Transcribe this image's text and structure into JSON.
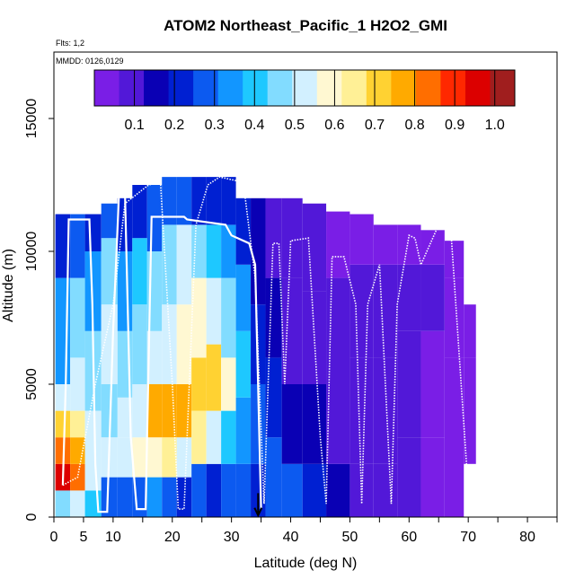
{
  "chart_data": {
    "type": "heatmap",
    "title": "ATOM2 Northeast_Pacific_1 H2O2_GMI",
    "annotations": [
      "Flts: 1,2",
      "MMDD: 0126,0129"
    ],
    "xlabel": "Latitude (deg N)",
    "ylabel": "Altitude (m)",
    "xlim": [
      0,
      85
    ],
    "ylim": [
      0,
      17500
    ],
    "x_ticks": [
      0,
      5,
      10,
      20,
      30,
      40,
      50,
      60,
      70,
      80
    ],
    "y_ticks": [
      0,
      5000,
      10000,
      15000
    ],
    "grid": false,
    "colorbar": {
      "position": "top-inside",
      "range": [
        0,
        1.05
      ],
      "tick_values": [
        0.1,
        0.2,
        0.3,
        0.4,
        0.5,
        0.6,
        0.7,
        0.8,
        0.9,
        1.0
      ],
      "tick_labels": [
        "0.1",
        "0.2",
        "0.3",
        "0.4",
        "0.5",
        "0.6",
        "0.7",
        "0.8",
        "0.9",
        "1.0"
      ],
      "colors": [
        "#7a1ee6",
        "#5218d8",
        "#0a00b4",
        "#0020d2",
        "#0c5af0",
        "#1296ff",
        "#1ec8ff",
        "#82dcff",
        "#d2f0ff",
        "#fff8d2",
        "#fff096",
        "#ffd232",
        "#ffaa00",
        "#ff6e00",
        "#ff2800",
        "#dc0000",
        "#a01e1e"
      ]
    },
    "h2o2_columns_ppbv": [
      {
        "lat": 1.5,
        "profile": [
          [
            0,
            1000,
            0.45
          ],
          [
            1000,
            2000,
            0.95
          ],
          [
            2000,
            3000,
            0.85
          ],
          [
            3000,
            4000,
            0.7
          ],
          [
            4000,
            5000,
            0.5
          ],
          [
            5000,
            9000,
            0.35
          ],
          [
            9000,
            11400,
            0.2
          ]
        ]
      },
      {
        "lat": 4,
        "profile": [
          [
            0,
            1000,
            0.5
          ],
          [
            1000,
            2000,
            0.85
          ],
          [
            2000,
            3000,
            0.8
          ],
          [
            3000,
            4000,
            0.65
          ],
          [
            4000,
            6000,
            0.5
          ],
          [
            6000,
            9000,
            0.45
          ],
          [
            9000,
            11400,
            0.25
          ]
        ]
      },
      {
        "lat": 6.5,
        "profile": [
          [
            0,
            1000,
            0.4
          ],
          [
            1000,
            2500,
            0.55
          ],
          [
            2500,
            4000,
            0.5
          ],
          [
            4000,
            7000,
            0.45
          ],
          [
            7000,
            10000,
            0.35
          ],
          [
            10000,
            11400,
            0.2
          ]
        ]
      },
      {
        "lat": 9.5,
        "profile": [
          [
            0,
            1500,
            0.3
          ],
          [
            1500,
            3000,
            0.55
          ],
          [
            3000,
            5000,
            0.45
          ],
          [
            5000,
            8000,
            0.5
          ],
          [
            8000,
            10500,
            0.45
          ],
          [
            10500,
            11800,
            0.25
          ]
        ]
      },
      {
        "lat": 12,
        "profile": [
          [
            0,
            1500,
            0.25
          ],
          [
            1500,
            3000,
            0.5
          ],
          [
            3000,
            4500,
            0.55
          ],
          [
            4500,
            7000,
            0.45
          ],
          [
            7000,
            10000,
            0.35
          ],
          [
            10000,
            12000,
            0.2
          ]
        ]
      },
      {
        "lat": 14.5,
        "profile": [
          [
            0,
            1500,
            0.3
          ],
          [
            1500,
            3000,
            0.6
          ],
          [
            3000,
            5000,
            0.55
          ],
          [
            5000,
            8000,
            0.45
          ],
          [
            8000,
            10500,
            0.4
          ],
          [
            10500,
            12500,
            0.2
          ]
        ]
      },
      {
        "lat": 17,
        "profile": [
          [
            0,
            1500,
            0.35
          ],
          [
            1500,
            3000,
            0.6
          ],
          [
            3000,
            5000,
            0.75
          ],
          [
            5000,
            7000,
            0.55
          ],
          [
            7000,
            10000,
            0.45
          ],
          [
            10000,
            12500,
            0.3
          ]
        ]
      },
      {
        "lat": 19.5,
        "profile": [
          [
            0,
            1500,
            0.25
          ],
          [
            1500,
            3000,
            0.65
          ],
          [
            3000,
            5000,
            0.78
          ],
          [
            5000,
            8000,
            0.55
          ],
          [
            8000,
            11000,
            0.45
          ],
          [
            11000,
            12800,
            0.25
          ]
        ]
      },
      {
        "lat": 22,
        "profile": [
          [
            0,
            1500,
            0.2
          ],
          [
            1500,
            3000,
            0.55
          ],
          [
            3000,
            5000,
            0.75
          ],
          [
            5000,
            8000,
            0.6
          ],
          [
            8000,
            11000,
            0.5
          ],
          [
            11000,
            12800,
            0.25
          ]
        ]
      },
      {
        "lat": 24.5,
        "profile": [
          [
            0,
            2000,
            0.25
          ],
          [
            2000,
            4000,
            0.65
          ],
          [
            4000,
            6000,
            0.7
          ],
          [
            6000,
            9000,
            0.6
          ],
          [
            9000,
            11000,
            0.45
          ],
          [
            11000,
            12800,
            0.2
          ]
        ]
      },
      {
        "lat": 27,
        "profile": [
          [
            0,
            2000,
            0.2
          ],
          [
            2000,
            4000,
            0.5
          ],
          [
            4000,
            6500,
            0.7
          ],
          [
            6500,
            9000,
            0.55
          ],
          [
            9000,
            11000,
            0.4
          ],
          [
            11000,
            12800,
            0.2
          ]
        ]
      },
      {
        "lat": 29.5,
        "profile": [
          [
            0,
            2000,
            0.3
          ],
          [
            2000,
            4000,
            0.4
          ],
          [
            4000,
            6000,
            0.6
          ],
          [
            6000,
            9000,
            0.45
          ],
          [
            9000,
            11000,
            0.35
          ],
          [
            11000,
            12800,
            0.2
          ]
        ]
      },
      {
        "lat": 32,
        "profile": [
          [
            0,
            2000,
            0.25
          ],
          [
            2000,
            4500,
            0.35
          ],
          [
            4500,
            7000,
            0.4
          ],
          [
            7000,
            9500,
            0.35
          ],
          [
            9500,
            12000,
            0.2
          ]
        ]
      },
      {
        "lat": 34.5,
        "profile": [
          [
            0,
            2000,
            0.2
          ],
          [
            2000,
            5000,
            0.25
          ],
          [
            5000,
            8000,
            0.2
          ],
          [
            8000,
            12000,
            0.15
          ]
        ]
      },
      {
        "lat": 37,
        "profile": [
          [
            0,
            3000,
            0.3
          ],
          [
            3000,
            6000,
            0.2
          ],
          [
            6000,
            9000,
            0.15
          ],
          [
            9000,
            12000,
            0.1
          ]
        ]
      },
      {
        "lat": 40,
        "profile": [
          [
            0,
            2000,
            0.25
          ],
          [
            2000,
            5000,
            0.18
          ],
          [
            5000,
            9000,
            0.12
          ],
          [
            9000,
            12000,
            0.08
          ]
        ]
      },
      {
        "lat": 44,
        "profile": [
          [
            0,
            2000,
            0.2
          ],
          [
            2000,
            5000,
            0.15
          ],
          [
            5000,
            8500,
            0.12
          ],
          [
            8500,
            11800,
            0.08
          ]
        ]
      },
      {
        "lat": 48,
        "profile": [
          [
            0,
            2000,
            0.15
          ],
          [
            2000,
            5000,
            0.12
          ],
          [
            5000,
            9000,
            0.1
          ],
          [
            9000,
            11500,
            0.06
          ]
        ]
      },
      {
        "lat": 52,
        "profile": [
          [
            0,
            2000,
            0.12
          ],
          [
            2000,
            6000,
            0.1
          ],
          [
            6000,
            9500,
            0.08
          ],
          [
            9500,
            11400,
            0.05
          ]
        ]
      },
      {
        "lat": 56,
        "profile": [
          [
            0,
            2000,
            0.1
          ],
          [
            2000,
            6000,
            0.08
          ],
          [
            6000,
            9500,
            0.07
          ],
          [
            9500,
            11000,
            0.05
          ]
        ]
      },
      {
        "lat": 60,
        "profile": [
          [
            0,
            3000,
            0.07
          ],
          [
            3000,
            7000,
            0.1
          ],
          [
            7000,
            9500,
            0.08
          ],
          [
            9500,
            11000,
            0.05
          ]
        ]
      },
      {
        "lat": 64,
        "profile": [
          [
            0,
            3000,
            0.05
          ],
          [
            3000,
            7000,
            0.06
          ],
          [
            7000,
            9500,
            0.08
          ],
          [
            9500,
            10800,
            0.05
          ]
        ]
      },
      {
        "lat": 68,
        "profile": [
          [
            0,
            2500,
            0.04
          ],
          [
            2500,
            6000,
            0.05
          ],
          [
            6000,
            9000,
            0.06
          ],
          [
            9000,
            10400,
            0.04
          ]
        ]
      },
      {
        "lat": 70.5,
        "profile": [
          [
            2000,
            6000,
            0.05
          ],
          [
            6000,
            8000,
            0.04
          ]
        ]
      }
    ],
    "flight_track": {
      "series_1_solid": [
        [
          1.5,
          1200
        ],
        [
          2,
          5000
        ],
        [
          2.5,
          11200
        ],
        [
          6,
          11200
        ],
        [
          6.5,
          8000
        ],
        [
          7,
          2000
        ],
        [
          7.5,
          200
        ],
        [
          9,
          200
        ],
        [
          10,
          7000
        ],
        [
          11,
          12200
        ],
        [
          12,
          12200
        ],
        [
          13,
          3000
        ],
        [
          14,
          300
        ],
        [
          15.5,
          300
        ],
        [
          16.5,
          11300
        ],
        [
          22,
          11300
        ],
        [
          22.5,
          11200
        ],
        [
          29,
          11000
        ],
        [
          30,
          10600
        ],
        [
          33,
          10300
        ],
        [
          34,
          9500
        ],
        [
          35,
          300
        ]
      ],
      "series_2_dotted": [
        [
          1.5,
          1200
        ],
        [
          4,
          1500
        ],
        [
          7,
          5000
        ],
        [
          10,
          8000
        ],
        [
          12,
          11800
        ],
        [
          16,
          12500
        ],
        [
          18,
          12600
        ],
        [
          20,
          5000
        ],
        [
          21,
          300
        ],
        [
          22,
          300
        ],
        [
          24,
          11000
        ],
        [
          26,
          12500
        ],
        [
          28,
          12800
        ],
        [
          30,
          12700
        ],
        [
          32,
          12600
        ],
        [
          34,
          9000
        ],
        [
          35.5,
          500
        ],
        [
          37,
          10300
        ],
        [
          38,
          10300
        ],
        [
          39,
          5000
        ],
        [
          40,
          10400
        ],
        [
          43,
          10500
        ],
        [
          45,
          3000
        ],
        [
          46,
          500
        ],
        [
          47,
          9800
        ],
        [
          49,
          9800
        ],
        [
          51,
          8000
        ],
        [
          52,
          500
        ],
        [
          53,
          8000
        ],
        [
          55,
          9500
        ],
        [
          57,
          500
        ],
        [
          58,
          8000
        ],
        [
          60,
          10600
        ],
        [
          61,
          10500
        ],
        [
          62,
          9500
        ],
        [
          63,
          10000
        ],
        [
          65,
          11000
        ],
        [
          67,
          11000
        ],
        [
          70,
          1000
        ],
        [
          70.5,
          300
        ]
      ]
    }
  }
}
